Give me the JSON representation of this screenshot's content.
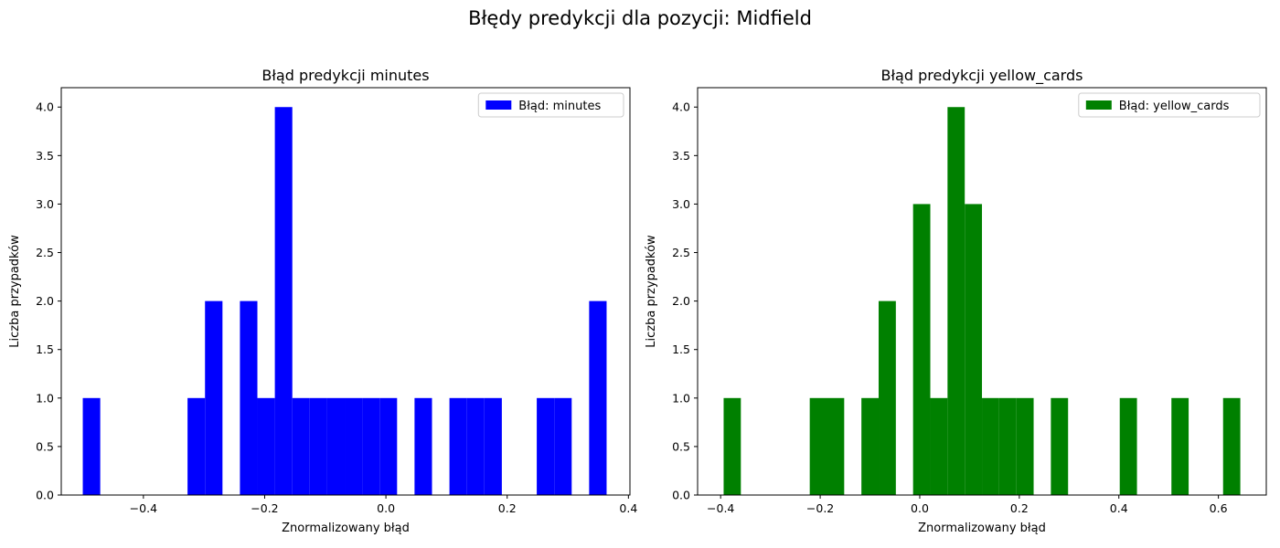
{
  "figure": {
    "title": "Błędy predykcji dla pozycji: Midfield"
  },
  "chart_data": [
    {
      "type": "bar",
      "title": "Błąd predykcji minutes",
      "xlabel": "Znormalizowany błąd",
      "ylabel": "Liczba przypadków",
      "color": "#0000ff",
      "legend": {
        "label": "Błąd: minutes",
        "position": "top-right"
      },
      "xlim": [
        -0.5355,
        0.4025
      ],
      "ylim": [
        0,
        4.2
      ],
      "grid": false,
      "xticks": [
        -0.4,
        -0.2,
        0.0,
        0.2,
        0.4
      ],
      "xtick_labels": [
        "−0.4",
        "−0.2",
        "0.0",
        "0.2",
        "0.4"
      ],
      "yticks": [
        0,
        0.5,
        1,
        1.5,
        2,
        2.5,
        3,
        3.5,
        4
      ],
      "ytick_labels": [
        "0.0",
        "0.5",
        "1.0",
        "1.5",
        "2.0",
        "2.5",
        "3.0",
        "3.5",
        "4.0"
      ],
      "bins": {
        "edges_start": -0.5,
        "bin_width": 0.0288,
        "counts": [
          1,
          0,
          0,
          0,
          0,
          0,
          1,
          2,
          0,
          2,
          1,
          4,
          1,
          1,
          1,
          1,
          1,
          1,
          0,
          1,
          0,
          1,
          1,
          1,
          0,
          0,
          1,
          1,
          0,
          2
        ]
      }
    },
    {
      "type": "bar",
      "title": "Błąd predykcji yellow_cards",
      "xlabel": "Znormalizowany błąd",
      "ylabel": "Liczba przypadków",
      "color": "#008000",
      "legend": {
        "label": "Błąd: yellow_cards",
        "position": "top-right"
      },
      "xlim": [
        -0.4463,
        0.6962
      ],
      "ylim": [
        0,
        4.2
      ],
      "grid": false,
      "xticks": [
        -0.4,
        -0.2,
        0.0,
        0.2,
        0.4,
        0.6
      ],
      "xtick_labels": [
        "−0.4",
        "−0.2",
        "0.0",
        "0.2",
        "0.4",
        "0.6"
      ],
      "yticks": [
        0,
        0.5,
        1,
        1.5,
        2,
        2.5,
        3,
        3.5,
        4
      ],
      "ytick_labels": [
        "0.0",
        "0.5",
        "1.0",
        "1.5",
        "2.0",
        "2.5",
        "3.0",
        "3.5",
        "4.0"
      ],
      "bins": {
        "edges_start": -0.394,
        "bin_width": 0.0346,
        "counts": [
          1,
          0,
          0,
          0,
          0,
          1,
          1,
          0,
          1,
          2,
          0,
          3,
          1,
          4,
          3,
          1,
          1,
          1,
          0,
          1,
          0,
          0,
          0,
          1,
          0,
          0,
          1,
          0,
          0,
          1
        ]
      }
    }
  ]
}
